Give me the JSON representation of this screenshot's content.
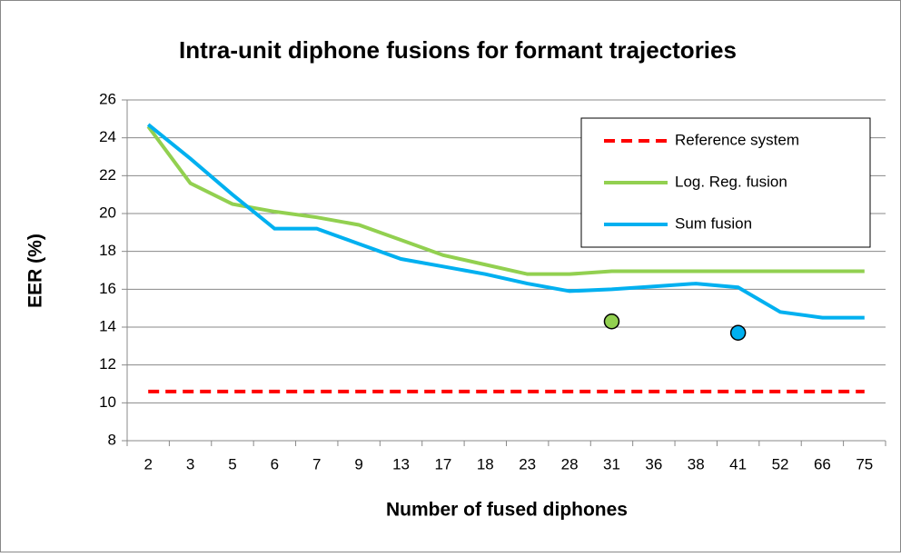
{
  "chart_data": {
    "type": "line",
    "title": "Intra-unit diphone fusions for formant trajectories",
    "x_label": "Number of fused diphones",
    "y_label": "EER (%)",
    "categories": [
      "2",
      "3",
      "5",
      "6",
      "7",
      "9",
      "13",
      "17",
      "18",
      "23",
      "28",
      "31",
      "36",
      "38",
      "41",
      "52",
      "66",
      "75"
    ],
    "series": [
      {
        "name": "Reference system",
        "color": "#ff0000",
        "dashed": true,
        "values": [
          10.6,
          10.6,
          10.6,
          10.6,
          10.6,
          10.6,
          10.6,
          10.6,
          10.6,
          10.6,
          10.6,
          10.6,
          10.6,
          10.6,
          10.6,
          10.6,
          10.6,
          10.6
        ]
      },
      {
        "name": "Log. Reg. fusion",
        "color": "#92d050",
        "values": [
          24.6,
          21.6,
          20.5,
          20.1,
          19.8,
          19.4,
          18.6,
          17.8,
          17.3,
          16.8,
          16.8,
          16.95,
          16.95,
          16.95,
          16.95,
          16.95,
          16.95,
          16.95
        ]
      },
      {
        "name": "Sum fusion",
        "color": "#00b0f0",
        "values": [
          24.7,
          22.9,
          21.0,
          19.2,
          19.2,
          18.4,
          17.6,
          17.2,
          16.8,
          16.3,
          15.9,
          16.0,
          16.15,
          16.3,
          16.1,
          14.8,
          14.5,
          14.5
        ]
      },
      {
        "color": "#92d050",
        "marker": true,
        "values": [
          null,
          null,
          null,
          null,
          null,
          null,
          null,
          null,
          null,
          null,
          null,
          14.3,
          null,
          null,
          null,
          null,
          null,
          null
        ]
      },
      {
        "color": "#00b0f0",
        "marker": true,
        "values": [
          null,
          null,
          null,
          null,
          null,
          null,
          null,
          null,
          null,
          null,
          null,
          null,
          null,
          null,
          13.7,
          null,
          null,
          null
        ]
      }
    ],
    "ylim": [
      8,
      26
    ],
    "yticks": [
      8,
      10,
      12,
      14,
      16,
      18,
      20,
      22,
      24,
      26
    ],
    "grid": true,
    "legend": "upper right"
  }
}
